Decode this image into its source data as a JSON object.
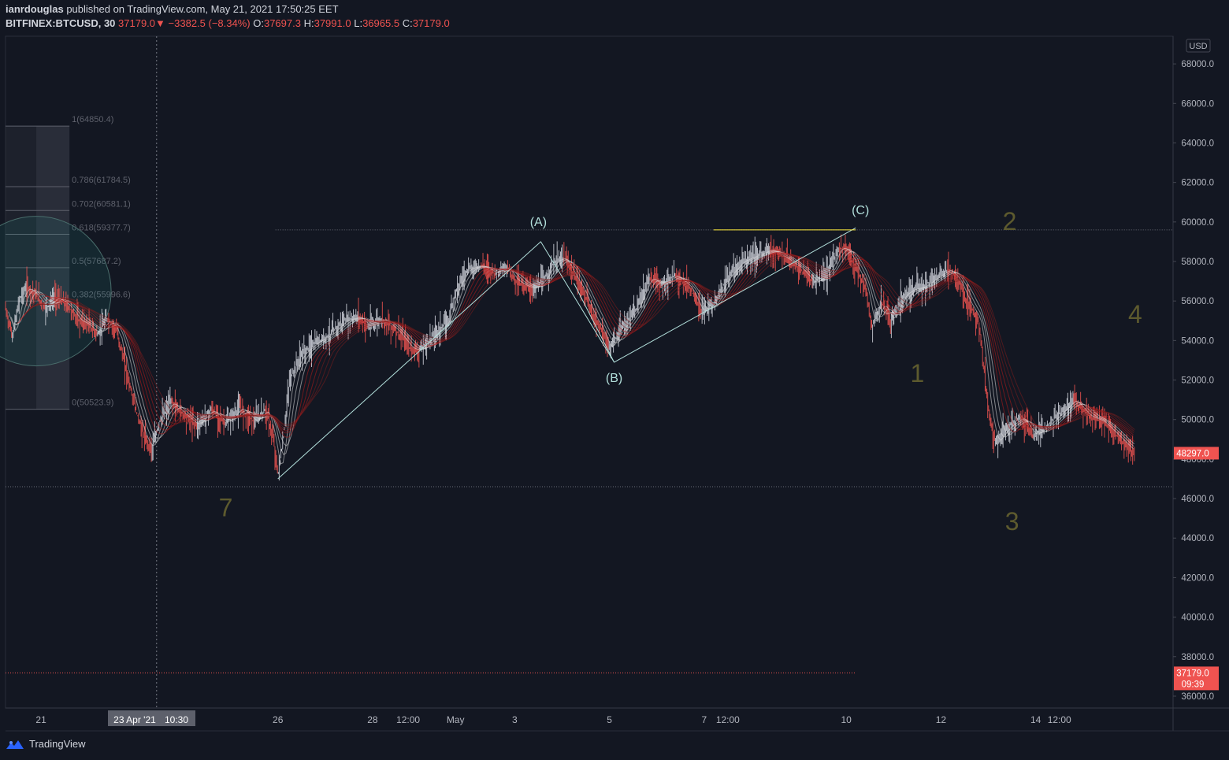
{
  "header": {
    "author": "ianrdouglas",
    "published_text": "published on TradingView.com, May 21, 2021 17:50:25 EET",
    "symbol": "BITFINEX:BTCUSD, 30",
    "last": "37179.0",
    "change": "−3382.5 (−8.34%)",
    "o_label": "O:",
    "o": "37697.3",
    "h_label": "H:",
    "h": "37991.0",
    "l_label": "L:",
    "l": "36965.5",
    "c_label": "C:",
    "c": "37179.0"
  },
  "footer": {
    "brand": "TradingView"
  },
  "colors": {
    "background": "#131722",
    "up": "#ffffff",
    "down": "#ef5350",
    "accent": "#ef5350",
    "wave_line": "#b2dfdb",
    "wave_count": "#5d5a2e"
  },
  "chart_data": {
    "type": "candlestick",
    "currency": "USD",
    "y_ticks": [
      36000,
      38000,
      40000,
      42000,
      44000,
      46000,
      48000,
      50000,
      52000,
      54000,
      56000,
      58000,
      60000,
      62000,
      64000,
      66000,
      68000
    ],
    "y_tick_labels": [
      "36000.0",
      "38000.0",
      "40000.0",
      "42000.0",
      "44000.0",
      "46000.0",
      "48000.0",
      "50000.0",
      "52000.0",
      "54000.0",
      "56000.0",
      "58000.0",
      "60000.0",
      "62000.0",
      "64000.0",
      "66000.0",
      "68000.0"
    ],
    "ylim": [
      35400,
      69400
    ],
    "x_ticks": [
      {
        "label": "21",
        "t": 0
      },
      {
        "label": "26",
        "t": 5
      },
      {
        "label": "28",
        "t": 7
      },
      {
        "label": "12:00",
        "t": 7.75
      },
      {
        "label": "May",
        "t": 8.75
      },
      {
        "label": "3",
        "t": 10
      },
      {
        "label": "5",
        "t": 12
      },
      {
        "label": "7",
        "t": 14
      },
      {
        "label": "12:00",
        "t": 14.5
      },
      {
        "label": "10",
        "t": 17
      },
      {
        "label": "12",
        "t": 19
      },
      {
        "label": "14",
        "t": 21
      },
      {
        "label": "12:00",
        "t": 21.5
      }
    ],
    "xlim": [
      -0.75,
      23.9
    ],
    "crosshair": {
      "date_label": "23 Apr '21",
      "time_label": "10:30",
      "t": 2.44
    },
    "price_labels": [
      {
        "value": "48297.0",
        "y": 48297
      },
      {
        "value": "37179.0",
        "y": 37179,
        "countdown": "09:39"
      }
    ],
    "price_path": [
      [
        -0.75,
        55600
      ],
      [
        -0.6,
        54200
      ],
      [
        -0.45,
        56100
      ],
      [
        -0.3,
        56700
      ],
      [
        -0.1,
        56300
      ],
      [
        0.1,
        55600
      ],
      [
        0.3,
        56200
      ],
      [
        0.55,
        55800
      ],
      [
        0.8,
        55000
      ],
      [
        1.0,
        54800
      ],
      [
        1.2,
        54300
      ],
      [
        1.4,
        55100
      ],
      [
        1.6,
        54500
      ],
      [
        1.8,
        52500
      ],
      [
        2.0,
        50500
      ],
      [
        2.2,
        49000
      ],
      [
        2.35,
        48500
      ],
      [
        2.5,
        49900
      ],
      [
        2.75,
        50900
      ],
      [
        3.0,
        50300
      ],
      [
        3.3,
        49700
      ],
      [
        3.6,
        50500
      ],
      [
        3.9,
        49800
      ],
      [
        4.2,
        50600
      ],
      [
        4.5,
        49900
      ],
      [
        4.75,
        50500
      ],
      [
        4.92,
        48800
      ],
      [
        5.0,
        47200
      ],
      [
        5.1,
        48700
      ],
      [
        5.25,
        52000
      ],
      [
        5.5,
        53300
      ],
      [
        5.8,
        53900
      ],
      [
        6.1,
        54300
      ],
      [
        6.4,
        55000
      ],
      [
        6.7,
        55200
      ],
      [
        6.9,
        54700
      ],
      [
        7.2,
        55100
      ],
      [
        7.5,
        54500
      ],
      [
        7.8,
        53600
      ],
      [
        8.0,
        53500
      ],
      [
        8.3,
        54300
      ],
      [
        8.6,
        55000
      ],
      [
        8.75,
        56500
      ],
      [
        9.0,
        57600
      ],
      [
        9.3,
        57800
      ],
      [
        9.6,
        57400
      ],
      [
        9.85,
        57700
      ],
      [
        10.0,
        57100
      ],
      [
        10.2,
        56800
      ],
      [
        10.4,
        56600
      ],
      [
        10.6,
        57000
      ],
      [
        10.85,
        58000
      ],
      [
        11.05,
        58200
      ],
      [
        11.25,
        57300
      ],
      [
        11.45,
        56500
      ],
      [
        11.65,
        55300
      ],
      [
        11.85,
        54500
      ],
      [
        12.0,
        53500
      ],
      [
        12.1,
        54000
      ],
      [
        12.3,
        54700
      ],
      [
        12.6,
        55700
      ],
      [
        12.85,
        57200
      ],
      [
        13.1,
        56800
      ],
      [
        13.4,
        57300
      ],
      [
        13.7,
        56700
      ],
      [
        13.95,
        55400
      ],
      [
        14.2,
        55900
      ],
      [
        14.5,
        57200
      ],
      [
        14.8,
        58000
      ],
      [
        15.1,
        58300
      ],
      [
        15.4,
        58600
      ],
      [
        15.7,
        58200
      ],
      [
        16.0,
        57700
      ],
      [
        16.3,
        56900
      ],
      [
        16.6,
        57400
      ],
      [
        16.85,
        58700
      ],
      [
        17.0,
        58600
      ],
      [
        17.2,
        57700
      ],
      [
        17.4,
        56700
      ],
      [
        17.55,
        54700
      ],
      [
        17.75,
        55900
      ],
      [
        17.95,
        55000
      ],
      [
        18.2,
        56300
      ],
      [
        18.4,
        56600
      ],
      [
        18.6,
        56700
      ],
      [
        18.9,
        57200
      ],
      [
        19.15,
        57600
      ],
      [
        19.35,
        57100
      ],
      [
        19.55,
        56000
      ],
      [
        19.8,
        55000
      ],
      [
        20.0,
        50600
      ],
      [
        20.15,
        48800
      ],
      [
        20.4,
        49600
      ],
      [
        20.7,
        50100
      ],
      [
        20.95,
        49200
      ],
      [
        21.2,
        49600
      ],
      [
        21.5,
        50300
      ],
      [
        21.8,
        51000
      ],
      [
        22.1,
        50200
      ],
      [
        22.4,
        49900
      ],
      [
        22.7,
        49200
      ],
      [
        22.95,
        48600
      ],
      [
        23.1,
        48300
      ]
    ],
    "waves": {
      "abc_path": [
        [
          5.0,
          47000
        ],
        [
          10.55,
          59000
        ],
        [
          12.1,
          52900
        ],
        [
          17.2,
          59700
        ]
      ],
      "ab_support": [
        [
          11.25,
          56900
        ],
        [
          12.1,
          52900
        ]
      ],
      "c_top_line": {
        "t0": 14.2,
        "t1": 17.2,
        "y": 59600
      },
      "labels": [
        {
          "text": "(A)",
          "t": 10.5,
          "y": 59800
        },
        {
          "text": "(B)",
          "t": 12.1,
          "y": 51900
        },
        {
          "text": "(C)",
          "t": 17.3,
          "y": 60400
        }
      ],
      "counts": [
        {
          "text": "7",
          "t": 3.9,
          "y": 45100
        },
        {
          "text": "1",
          "t": 18.5,
          "y": 51900
        },
        {
          "text": "2",
          "t": 20.45,
          "y": 59600
        },
        {
          "text": "3",
          "t": 20.5,
          "y": 44400
        },
        {
          "text": "4",
          "t": 23.1,
          "y": 54900
        }
      ]
    },
    "horizontal_lines": [
      {
        "y": 59600,
        "t0": 4.95,
        "t1": 23.9,
        "style": "dotted"
      },
      {
        "y": 46600,
        "t0": -0.75,
        "t1": 23.9,
        "style": "dotted"
      },
      {
        "y": 37179,
        "t0": -0.75,
        "t1": 17.2,
        "style": "dotted-red"
      }
    ],
    "fibonacci": {
      "t0": -0.75,
      "t1": 0.6,
      "levels": [
        {
          "label": "1(64850.4)",
          "value": 64850.4
        },
        {
          "label": "0.786(61784.5)",
          "value": 61784.5
        },
        {
          "label": "0.702(60581.1)",
          "value": 60581.1
        },
        {
          "label": "0.618(59377.7)",
          "value": 59377.7
        },
        {
          "label": "0.5(57687.2)",
          "value": 57687.2
        },
        {
          "label": "0.382(55996.6)",
          "value": 55996.6
        },
        {
          "label": "0(50523.9)",
          "value": 50523.9
        }
      ]
    },
    "circle": {
      "t": -0.1,
      "y": 56500
    }
  }
}
